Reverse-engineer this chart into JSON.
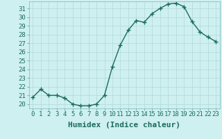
{
  "x": [
    0,
    1,
    2,
    3,
    4,
    5,
    6,
    7,
    8,
    9,
    10,
    11,
    12,
    13,
    14,
    15,
    16,
    17,
    18,
    19,
    20,
    21,
    22,
    23
  ],
  "y": [
    20.8,
    21.7,
    21.0,
    21.0,
    20.7,
    20.0,
    19.8,
    19.8,
    20.0,
    21.0,
    24.3,
    26.8,
    28.5,
    29.6,
    29.4,
    30.4,
    31.0,
    31.5,
    31.6,
    31.2,
    29.5,
    28.3,
    27.7,
    27.2
  ],
  "line_color": "#1a6b5a",
  "marker": "+",
  "marker_size": 4,
  "marker_linewidth": 1.0,
  "background_color": "#cff0f0",
  "grid_color": "#b0d8d8",
  "xlabel": "Humidex (Indice chaleur)",
  "xlabel_fontsize": 8,
  "ylim": [
    19.5,
    31.8
  ],
  "xlim": [
    -0.5,
    23.5
  ],
  "yticks": [
    20,
    21,
    22,
    23,
    24,
    25,
    26,
    27,
    28,
    29,
    30,
    31
  ],
  "xticks": [
    0,
    1,
    2,
    3,
    4,
    5,
    6,
    7,
    8,
    9,
    10,
    11,
    12,
    13,
    14,
    15,
    16,
    17,
    18,
    19,
    20,
    21,
    22,
    23
  ],
  "tick_fontsize": 6.5,
  "line_width": 1.0
}
